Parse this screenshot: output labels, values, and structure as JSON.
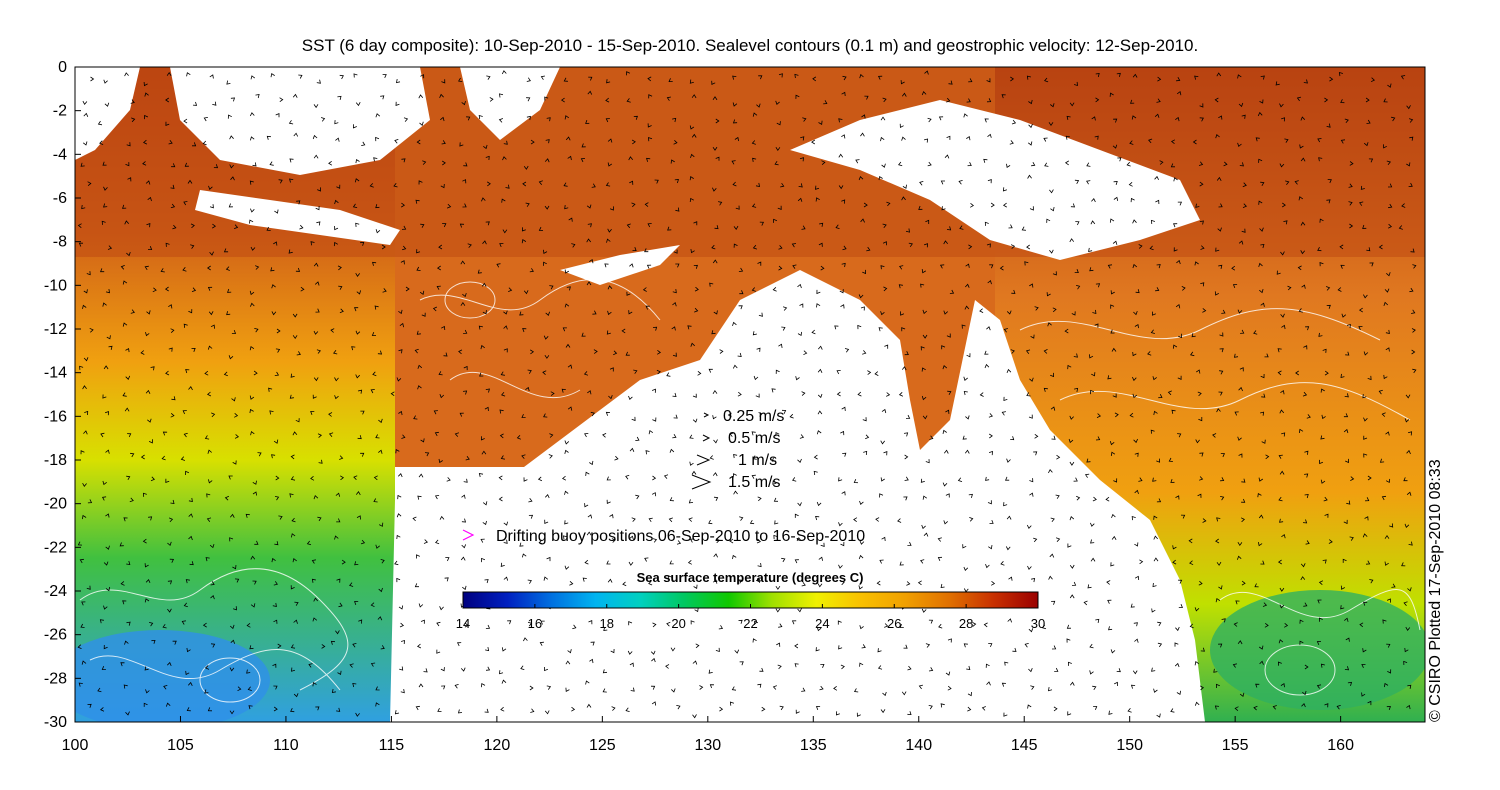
{
  "title": "SST (6 day composite): 10-Sep-2010 - 15-Sep-2010. Sealevel contours (0.1 m) and geostrophic velocity: 12-Sep-2010.",
  "credit": "© CSIRO Plotted 17-Sep-2010 08:33",
  "axes": {
    "x_ticks": [
      "100",
      "105",
      "110",
      "115",
      "120",
      "125",
      "130",
      "135",
      "140",
      "145",
      "150",
      "155",
      "160"
    ],
    "y_ticks": [
      "0",
      "-2",
      "-4",
      "-6",
      "-8",
      "-10",
      "-12",
      "-14",
      "-16",
      "-18",
      "-20",
      "-22",
      "-24",
      "-26",
      "-28",
      "-30"
    ],
    "x_range": [
      100,
      164
    ],
    "y_range": [
      -30,
      0
    ]
  },
  "velocity_legend": [
    {
      "label": "0.25 m/s",
      "speed": 0.25
    },
    {
      "label": "0.5 m/s",
      "speed": 0.5
    },
    {
      "label": "1 m/s",
      "speed": 1
    },
    {
      "label": "1.5 m/s",
      "speed": 1.5
    }
  ],
  "buoy_legend": {
    "label": "Drifting buoy positions 06-Sep-2010 to 16-Sep-2010",
    "color": "#ff00ff"
  },
  "colorbar": {
    "title": "Sea surface temperature (degrees C)",
    "ticks": [
      "14",
      "16",
      "18",
      "20",
      "22",
      "24",
      "26",
      "28",
      "30"
    ],
    "min": 14,
    "max": 30,
    "colors": [
      "#00007f",
      "#0020c0",
      "#0070e0",
      "#00b4f0",
      "#00d0c0",
      "#00c860",
      "#10c800",
      "#a0e000",
      "#f0f000",
      "#f8c000",
      "#f0a000",
      "#e07000",
      "#c83000",
      "#9a0000"
    ]
  },
  "colors": {
    "land": "#ffffff",
    "contour": "#ffffff",
    "sst_warm": "#e07820",
    "sst_hot": "#b84010",
    "sst_tropical": "#f0a010",
    "sst_mild": "#d8e000",
    "sst_cool": "#40c040",
    "sst_cold": "#30a0e0"
  }
}
